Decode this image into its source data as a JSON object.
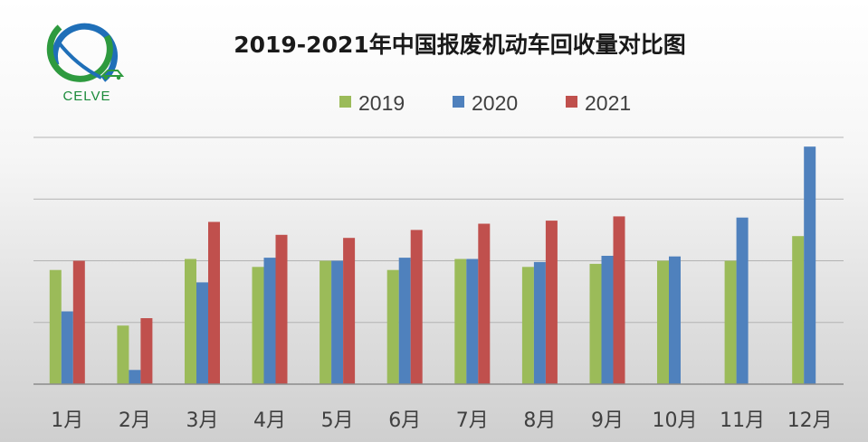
{
  "logo": {
    "text": "CELVE"
  },
  "chart_data": {
    "type": "bar",
    "title": "2019-2021年中国报废机动车回收量对比图",
    "xlabel": "",
    "ylabel": "",
    "categories": [
      "1月",
      "2月",
      "3月",
      "4月",
      "5月",
      "6月",
      "7月",
      "8月",
      "9月",
      "10月",
      "11月",
      "12月"
    ],
    "series": [
      {
        "name": "2019",
        "color": "#9bbb59",
        "values": [
          1.85,
          0.95,
          2.03,
          1.9,
          2.0,
          1.85,
          2.03,
          1.9,
          1.95,
          2.0,
          2.0,
          2.4
        ]
      },
      {
        "name": "2020",
        "color": "#4f81bd",
        "values": [
          1.18,
          0.23,
          1.65,
          2.05,
          2.0,
          2.05,
          2.03,
          1.98,
          2.08,
          2.07,
          2.7,
          3.85
        ]
      },
      {
        "name": "2021",
        "color": "#c0504d",
        "values": [
          2.0,
          1.07,
          2.63,
          2.42,
          2.37,
          2.5,
          2.6,
          2.65,
          2.72,
          null,
          null,
          null
        ]
      }
    ],
    "ylim": [
      0,
      4
    ],
    "y_gridlines": [
      1,
      2,
      3,
      4
    ],
    "grid": true,
    "legend": "top"
  }
}
